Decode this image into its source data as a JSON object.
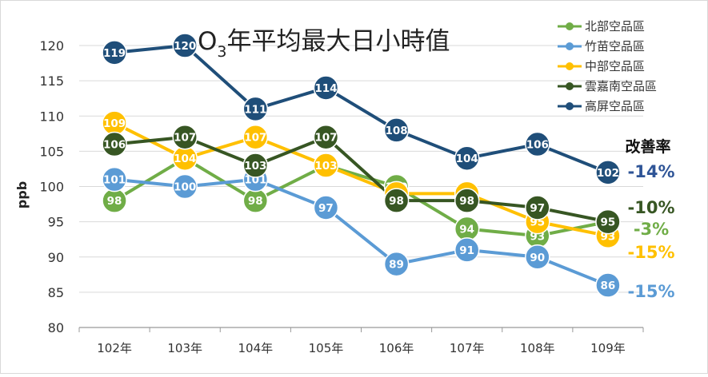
{
  "chart_data": {
    "type": "line",
    "title_main": "O",
    "title_sub": "3",
    "title_rest": "年平均最大日小時值",
    "ylabel": "ppb",
    "ylim": [
      80,
      120
    ],
    "yticks": [
      80,
      85,
      90,
      95,
      100,
      105,
      110,
      115,
      120
    ],
    "categories": [
      "102年",
      "103年",
      "104年",
      "105年",
      "106年",
      "107年",
      "108年",
      "109年"
    ],
    "improvement_label": "改善率",
    "legend_position": "top-right",
    "grid": true,
    "series": [
      {
        "name": "北部空品區",
        "color": "#70ad47",
        "values": [
          98,
          104,
          98,
          103,
          100,
          94,
          93,
          95
        ],
        "change": "-3%"
      },
      {
        "name": "竹苗空品區",
        "color": "#5b9bd5",
        "values": [
          101,
          100,
          101,
          97,
          89,
          91,
          90,
          86
        ],
        "change": "-15%"
      },
      {
        "name": "中部空品區",
        "color": "#ffc000",
        "values": [
          109,
          104,
          107,
          103,
          99,
          99,
          95,
          93
        ],
        "change": "-15%"
      },
      {
        "name": "雲嘉南空品區",
        "color": "#375623",
        "values": [
          106,
          107,
          103,
          107,
          98,
          98,
          97,
          95
        ],
        "change": "-10%"
      },
      {
        "name": "高屏空品區",
        "color": "#1f4e79",
        "values": [
          119,
          120,
          111,
          114,
          108,
          104,
          106,
          102
        ],
        "change": "-14%"
      }
    ]
  }
}
